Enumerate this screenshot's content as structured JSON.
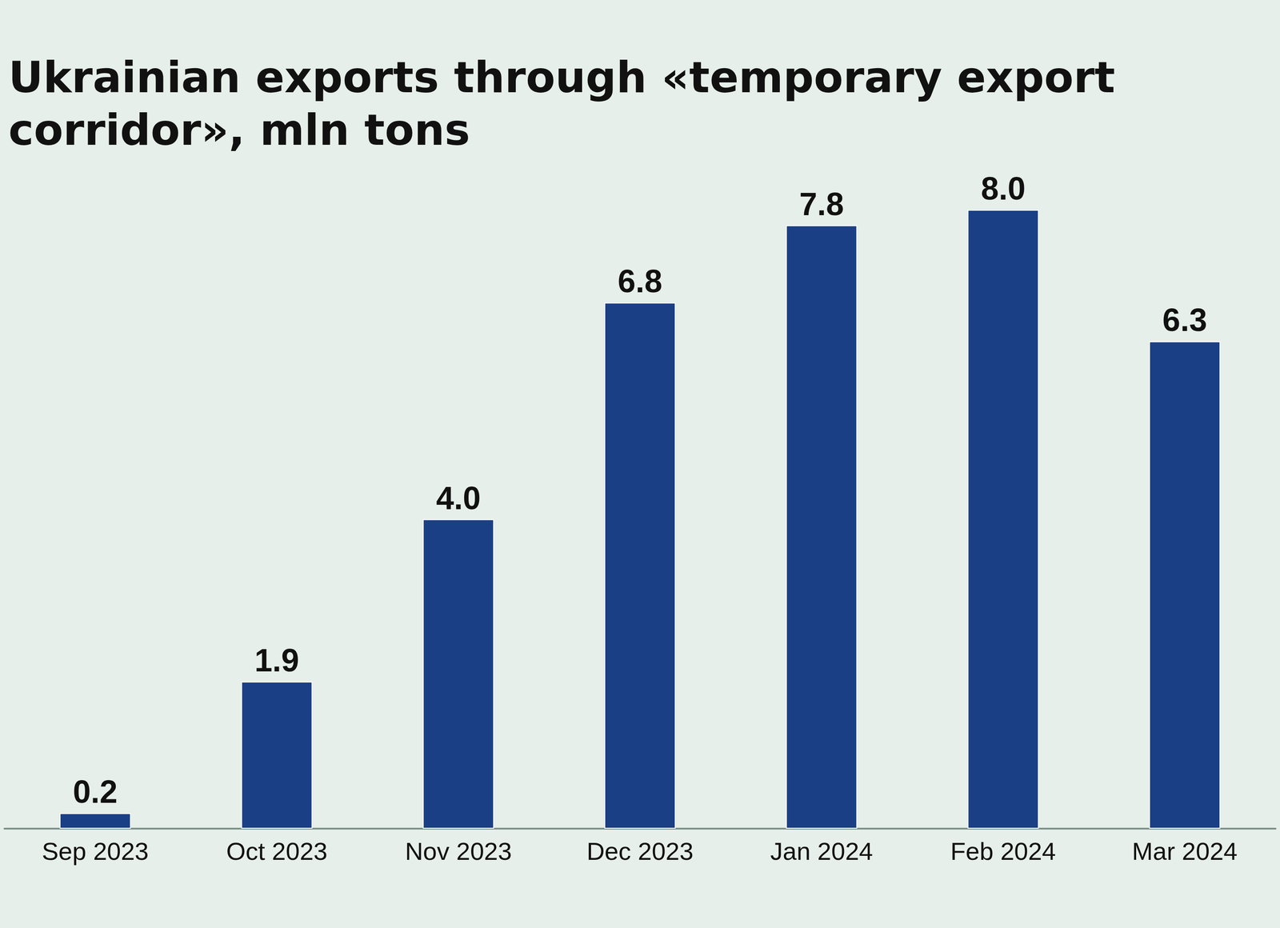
{
  "chart_data": {
    "type": "bar",
    "title": "Ukrainian exports through «temporary export corridor», mln tons",
    "categories": [
      "Sep 2023",
      "Oct 2023",
      "Nov 2023",
      "Dec 2023",
      "Jan 2024",
      "Feb 2024",
      "Mar 2024"
    ],
    "values": [
      0.2,
      1.9,
      4.0,
      6.8,
      7.8,
      8.0,
      6.3
    ],
    "value_labels": [
      "0.2",
      "1.9",
      "4.0",
      "6.8",
      "7.8",
      "8.0",
      "6.3"
    ],
    "color": "#1a3f84",
    "ylim": [
      0,
      8
    ],
    "grid": false,
    "data_labels": true,
    "tick_labels": "x"
  }
}
